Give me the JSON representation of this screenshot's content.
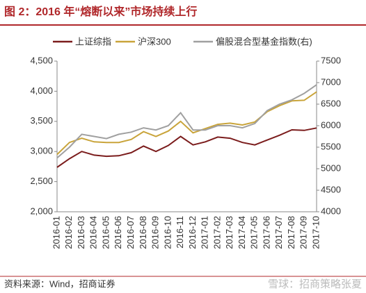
{
  "chart_data": {
    "type": "line",
    "title": "图 2：2016 年“熔断以来”市场持续上行",
    "source": "资料来源：Wind，招商证券",
    "watermark": "雪球：招商策略张夏",
    "categories": [
      "2016-01",
      "2016-02",
      "2016-03",
      "2016-04",
      "2016-05",
      "2016-06",
      "2016-07",
      "2016-08",
      "2016-09",
      "2016-10",
      "2016-11",
      "2016-12",
      "2017-01",
      "2017-02",
      "2017-03",
      "2017-04",
      "2017-05",
      "2017-06",
      "2017-07",
      "2017-08",
      "2017-09",
      "2017-10"
    ],
    "series": [
      {
        "name": "上证综指",
        "color": "#7b1c1c",
        "values": [
          2737,
          2880,
          3000,
          2940,
          2920,
          2930,
          2980,
          3090,
          3000,
          3100,
          3250,
          3110,
          3160,
          3240,
          3220,
          3150,
          3110,
          3190,
          3270,
          3360,
          3350,
          3390
        ]
      },
      {
        "name": "沪深300",
        "color": "#c9a43a",
        "values": [
          2950,
          3150,
          3220,
          3160,
          3150,
          3150,
          3200,
          3330,
          3250,
          3340,
          3500,
          3310,
          3380,
          3450,
          3470,
          3440,
          3490,
          3660,
          3760,
          3840,
          3850,
          3990
        ]
      },
      {
        "name": "偏股混合型基金指数(右)",
        "color": "#a0a0a0",
        "axis": "y2",
        "values": [
          5250,
          5500,
          5800,
          5750,
          5700,
          5800,
          5850,
          5950,
          5900,
          6000,
          6300,
          5900,
          5900,
          6000,
          6000,
          5950,
          6050,
          6350,
          6500,
          6600,
          6750,
          6950
        ]
      }
    ],
    "ylim": [
      2000,
      4500
    ],
    "yticks": [
      {
        "value": 2000,
        "label": "2,000"
      },
      {
        "value": 2500,
        "label": "2,500"
      },
      {
        "value": 3000,
        "label": "3,000"
      },
      {
        "value": 3500,
        "label": "3,500"
      },
      {
        "value": 4000,
        "label": "4,000"
      },
      {
        "value": 4500,
        "label": "4,500"
      }
    ],
    "y2lim": [
      4000,
      7500
    ],
    "y2ticks": [
      4000,
      4500,
      5000,
      5500,
      6000,
      6500,
      7000,
      7500
    ]
  }
}
